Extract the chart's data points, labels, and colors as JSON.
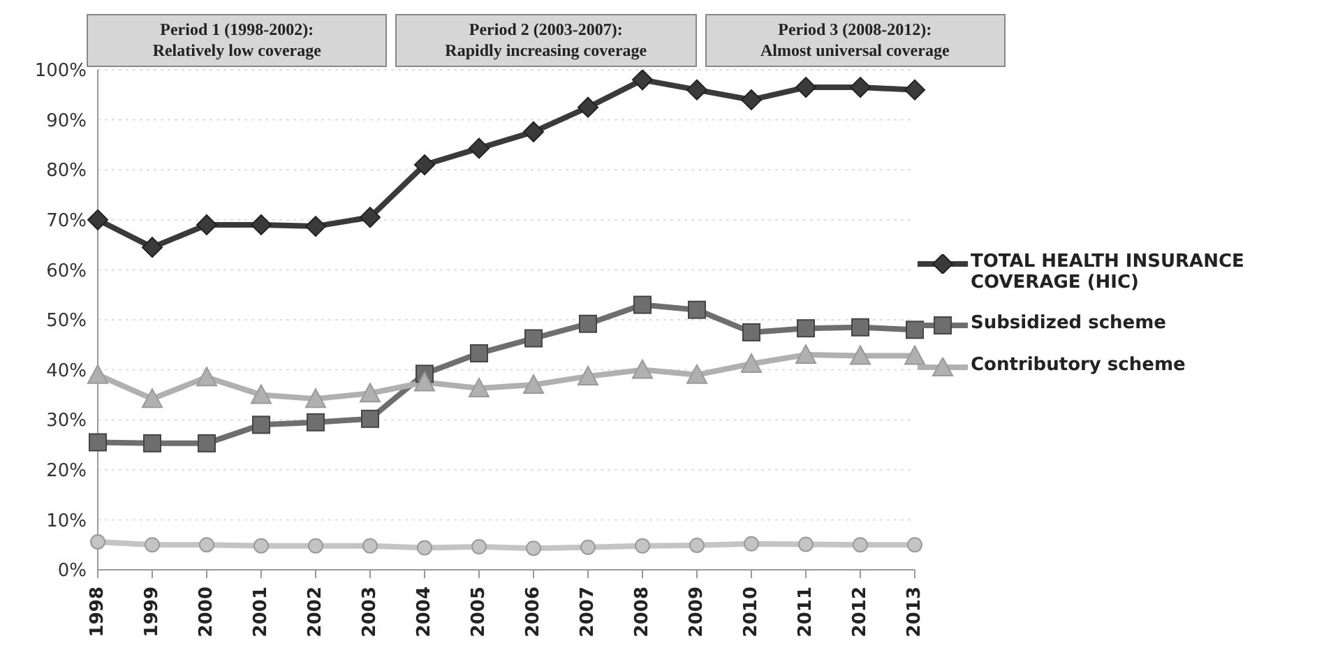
{
  "chart_data": {
    "type": "line",
    "categories": [
      "1998",
      "1999",
      "2000",
      "2001",
      "2002",
      "2003",
      "2004",
      "2005",
      "2006",
      "2007",
      "2008",
      "2009",
      "2010",
      "2011",
      "2012",
      "2013"
    ],
    "series": [
      {
        "name": "TOTAL HEALTH INSURANCE COVERAGE (HIC)",
        "color": "#3a3a3a",
        "marker": "diamond",
        "values": [
          70,
          64.5,
          69,
          69,
          68.7,
          70.5,
          81,
          84.3,
          87.6,
          92.5,
          98,
          96,
          94,
          96.5,
          96.5,
          96
        ]
      },
      {
        "name": "Subsidized scheme",
        "color": "#6e6e6e",
        "marker": "square",
        "values": [
          25.5,
          25.3,
          25.3,
          29,
          29.5,
          30.2,
          39.2,
          43.3,
          46.3,
          49.2,
          53,
          52,
          47.5,
          48.3,
          48.5,
          48
        ]
      },
      {
        "name": "Contributory scheme",
        "color": "#b0b0b0",
        "marker": "triangle",
        "values": [
          39,
          34.2,
          38.5,
          35,
          34.2,
          35.3,
          37.5,
          36.3,
          37,
          38.7,
          40,
          39,
          41.2,
          43,
          42.8,
          42.8
        ]
      },
      {
        "color": "#c4c4c4",
        "marker": "circle",
        "values": [
          5.6,
          5,
          5,
          4.8,
          4.8,
          4.8,
          4.4,
          4.6,
          4.3,
          4.5,
          4.8,
          4.9,
          5.2,
          5.1,
          5,
          5
        ]
      }
    ],
    "ylim": [
      0,
      100
    ],
    "yticks": [
      {
        "value": 0,
        "label": "0%"
      },
      {
        "value": 10,
        "label": "10%"
      },
      {
        "value": 20,
        "label": "20%"
      },
      {
        "value": 30,
        "label": "30%"
      },
      {
        "value": 40,
        "label": "40%"
      },
      {
        "value": 50,
        "label": "50%"
      },
      {
        "value": 60,
        "label": "60%"
      },
      {
        "value": 70,
        "label": "70%"
      },
      {
        "value": 80,
        "label": "80%"
      },
      {
        "value": 90,
        "label": "90%"
      },
      {
        "value": 100,
        "label": "100%"
      }
    ],
    "grid": "y",
    "legend": "right",
    "annotations": [
      "Period 1      (1998-2002):\nRelatively low coverage",
      "Period 2      (2003-2007):\nRapidly increasing coverage",
      "Period 3      (2008-2012):\nAlmost universal coverage"
    ]
  }
}
